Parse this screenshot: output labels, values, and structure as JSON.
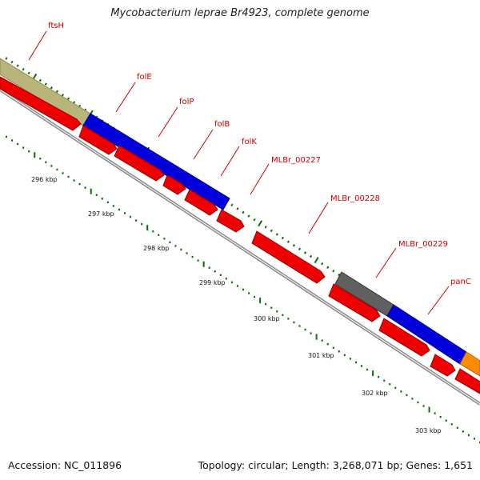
{
  "title": "Mycobacterium leprae Br4923, complete genome",
  "footer": {
    "accession": "Accession: NC_011896",
    "summary": "Topology: circular; Length: 3,268,071 bp; Genes: 1,651"
  },
  "colors": {
    "cds": "#ee0000",
    "gene_olive": "#b8b47a",
    "gene_blue": "#0000dd",
    "gene_gray": "#606060",
    "gene_orange": "#ff8c00",
    "backbone": "#8a8a8a",
    "tick": "#007000",
    "label": "#cc0000"
  },
  "gene_labels": [
    "ftsH",
    "folE",
    "folP",
    "folB",
    "folK",
    "MLBr_00227",
    "MLBr_00228",
    "MLBr_00229",
    "panC"
  ],
  "scale_labels": [
    "296 kbp",
    "297 kbp",
    "298 kbp",
    "299 kbp",
    "300 kbp",
    "301 kbp",
    "302 kbp",
    "303 kbp"
  ]
}
